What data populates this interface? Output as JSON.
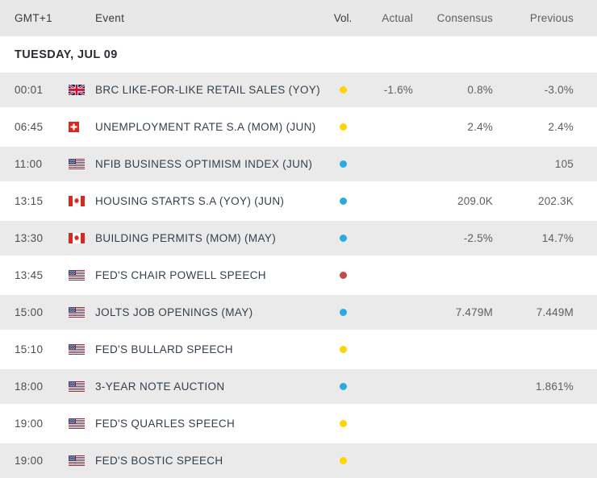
{
  "header": {
    "columns": [
      "GMT+1",
      "Event",
      "Vol.",
      "Actual",
      "Consensus",
      "Previous"
    ]
  },
  "date_header": "TUESDAY, JUL 09",
  "colors": {
    "yellow": "#ffd400",
    "blue": "#29abe2",
    "red": "#c64a4a",
    "header_bg": "#e8e8e8",
    "row_alt_bg": "#eaeaea",
    "event_text": "#333f4c",
    "value_text": "#5e5e63"
  },
  "rows": [
    {
      "time": "00:01",
      "country": "gb",
      "flag_icon": "uk-flag-icon",
      "event": "BRC LIKE-FOR-LIKE RETAIL SALES (YOY) ...",
      "vol": "yellow",
      "actual": "-1.6%",
      "consensus": "0.8%",
      "previous": "-3.0%"
    },
    {
      "time": "06:45",
      "country": "ch",
      "flag_icon": "switzerland-flag-icon",
      "event": "UNEMPLOYMENT RATE S.A (MOM) (JUN)",
      "vol": "yellow",
      "actual": "",
      "consensus": "2.4%",
      "previous": "2.4%"
    },
    {
      "time": "11:00",
      "country": "us",
      "flag_icon": "us-flag-icon",
      "event": "NFIB BUSINESS OPTIMISM INDEX (JUN)",
      "vol": "blue",
      "actual": "",
      "consensus": "",
      "previous": "105"
    },
    {
      "time": "13:15",
      "country": "ca",
      "flag_icon": "canada-flag-icon",
      "event": "HOUSING STARTS S.A (YOY) (JUN)",
      "vol": "blue",
      "actual": "",
      "consensus": "209.0K",
      "previous": "202.3K"
    },
    {
      "time": "13:30",
      "country": "ca",
      "flag_icon": "canada-flag-icon",
      "event": "BUILDING PERMITS (MOM) (MAY)",
      "vol": "blue",
      "actual": "",
      "consensus": "-2.5%",
      "previous": "14.7%"
    },
    {
      "time": "13:45",
      "country": "us",
      "flag_icon": "us-flag-icon",
      "event": "FED'S CHAIR POWELL SPEECH",
      "vol": "red",
      "actual": "",
      "consensus": "",
      "previous": ""
    },
    {
      "time": "15:00",
      "country": "us",
      "flag_icon": "us-flag-icon",
      "event": "JOLTS JOB OPENINGS (MAY)",
      "vol": "blue",
      "actual": "",
      "consensus": "7.479M",
      "previous": "7.449M"
    },
    {
      "time": "15:10",
      "country": "us",
      "flag_icon": "us-flag-icon",
      "event": "FED'S BULLARD SPEECH",
      "vol": "yellow",
      "actual": "",
      "consensus": "",
      "previous": ""
    },
    {
      "time": "18:00",
      "country": "us",
      "flag_icon": "us-flag-icon",
      "event": "3-YEAR NOTE AUCTION",
      "vol": "blue",
      "actual": "",
      "consensus": "",
      "previous": "1.861%"
    },
    {
      "time": "19:00",
      "country": "us",
      "flag_icon": "us-flag-icon",
      "event": "FED'S QUARLES SPEECH",
      "vol": "yellow",
      "actual": "",
      "consensus": "",
      "previous": ""
    },
    {
      "time": "19:00",
      "country": "us",
      "flag_icon": "us-flag-icon",
      "event": "FED'S BOSTIC SPEECH",
      "vol": "yellow",
      "actual": "",
      "consensus": "",
      "previous": ""
    }
  ]
}
